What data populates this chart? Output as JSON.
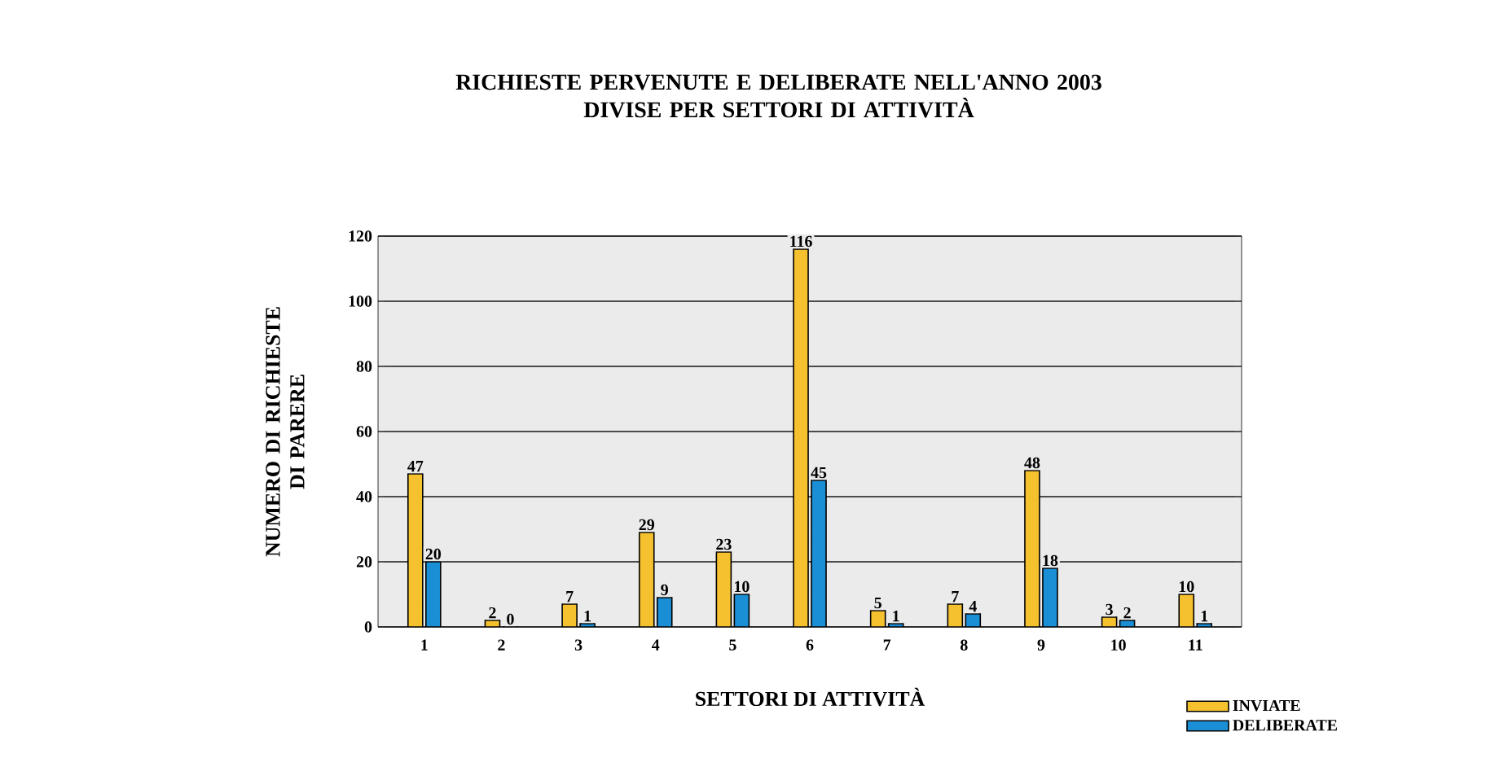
{
  "chart_data": {
    "type": "bar",
    "title": "RICHIESTE PERVENUTE E DELIBERATE NELL'ANNO 2003\nDIVISE PER SETTORI DI ATTIVITÀ",
    "xlabel": "SETTORI DI ATTIVITÀ",
    "ylabel": "NUMERO DI RICHIESTE\nDI PARERE",
    "categories": [
      "1",
      "2",
      "3",
      "4",
      "5",
      "6",
      "7",
      "8",
      "9",
      "10",
      "11"
    ],
    "series": [
      {
        "name": "INVIATE",
        "color": "#f5c12e",
        "values": [
          47,
          2,
          7,
          29,
          23,
          116,
          5,
          7,
          48,
          3,
          10
        ]
      },
      {
        "name": "DELIBERATE",
        "color": "#1a8fd6",
        "values": [
          20,
          0,
          1,
          9,
          10,
          45,
          1,
          4,
          18,
          2,
          1
        ]
      }
    ],
    "ylim": [
      0,
      120
    ],
    "yticks": [
      0,
      20,
      40,
      60,
      80,
      100,
      120
    ],
    "grid": "y",
    "legend": "bottom right",
    "data_labels": true
  }
}
